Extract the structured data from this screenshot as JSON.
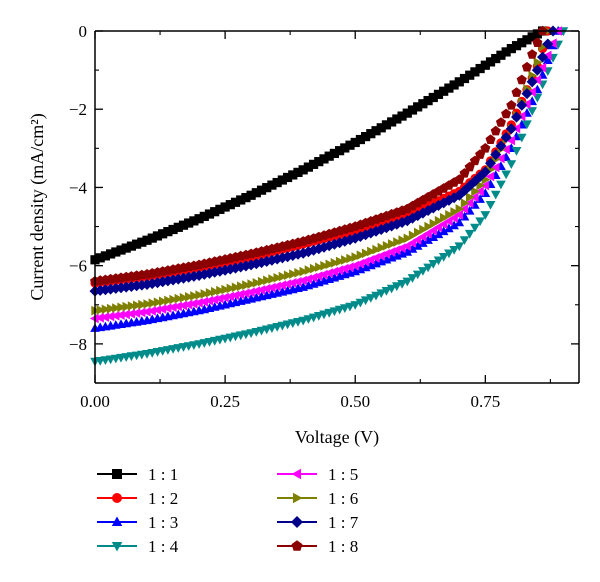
{
  "chart_data": {
    "type": "scatter",
    "xlabel": "Voltage (V)",
    "ylabel": "Current density (mA/cm²)",
    "xlim": [
      0,
      0.93
    ],
    "ylim": [
      -9,
      0
    ],
    "x_ticks": [
      "0.00",
      "0.25",
      "0.50",
      "0.75"
    ],
    "y_ticks": [
      "0",
      "−2",
      "−4",
      "−6",
      "−8"
    ],
    "grid": false,
    "legend_position": "bottom",
    "series": [
      {
        "name": "1 : 1",
        "color": "#000000",
        "marker": "square",
        "points": [
          [
            0.0,
            -5.85
          ],
          [
            0.1,
            -5.35
          ],
          [
            0.2,
            -4.8
          ],
          [
            0.3,
            -4.2
          ],
          [
            0.4,
            -3.55
          ],
          [
            0.5,
            -2.85
          ],
          [
            0.6,
            -2.1
          ],
          [
            0.7,
            -1.3
          ],
          [
            0.8,
            -0.45
          ],
          [
            0.86,
            0.0
          ]
        ]
      },
      {
        "name": "1 : 2",
        "color": "#ff0000",
        "marker": "circle",
        "points": [
          [
            0.0,
            -6.45
          ],
          [
            0.1,
            -6.28
          ],
          [
            0.2,
            -6.05
          ],
          [
            0.3,
            -5.78
          ],
          [
            0.4,
            -5.45
          ],
          [
            0.5,
            -5.1
          ],
          [
            0.6,
            -4.7
          ],
          [
            0.7,
            -4.1
          ],
          [
            0.75,
            -3.55
          ],
          [
            0.8,
            -2.4
          ],
          [
            0.85,
            -0.9
          ],
          [
            0.87,
            0.0
          ]
        ]
      },
      {
        "name": "1 : 3",
        "color": "#0000ff",
        "marker": "triangle-up",
        "points": [
          [
            0.0,
            -7.6
          ],
          [
            0.1,
            -7.4
          ],
          [
            0.2,
            -7.15
          ],
          [
            0.3,
            -6.85
          ],
          [
            0.4,
            -6.55
          ],
          [
            0.5,
            -6.15
          ],
          [
            0.6,
            -5.65
          ],
          [
            0.7,
            -4.9
          ],
          [
            0.75,
            -4.15
          ],
          [
            0.8,
            -3.0
          ],
          [
            0.85,
            -1.5
          ],
          [
            0.89,
            0.0
          ]
        ]
      },
      {
        "name": "1 : 4",
        "color": "#008b8b",
        "marker": "triangle-down",
        "points": [
          [
            0.0,
            -8.45
          ],
          [
            0.1,
            -8.25
          ],
          [
            0.2,
            -8.0
          ],
          [
            0.3,
            -7.72
          ],
          [
            0.4,
            -7.4
          ],
          [
            0.5,
            -7.0
          ],
          [
            0.6,
            -6.4
          ],
          [
            0.7,
            -5.5
          ],
          [
            0.75,
            -4.7
          ],
          [
            0.8,
            -3.4
          ],
          [
            0.85,
            -1.7
          ],
          [
            0.9,
            0.0
          ]
        ]
      },
      {
        "name": "1 : 5",
        "color": "#ff00ff",
        "marker": "triangle-left",
        "points": [
          [
            0.0,
            -7.35
          ],
          [
            0.1,
            -7.18
          ],
          [
            0.2,
            -6.95
          ],
          [
            0.3,
            -6.68
          ],
          [
            0.4,
            -6.38
          ],
          [
            0.5,
            -6.0
          ],
          [
            0.6,
            -5.5
          ],
          [
            0.7,
            -4.7
          ],
          [
            0.75,
            -3.95
          ],
          [
            0.8,
            -2.8
          ],
          [
            0.85,
            -1.25
          ],
          [
            0.89,
            0.0
          ]
        ]
      },
      {
        "name": "1 : 6",
        "color": "#808000",
        "marker": "triangle-right",
        "points": [
          [
            0.0,
            -7.15
          ],
          [
            0.1,
            -6.98
          ],
          [
            0.2,
            -6.75
          ],
          [
            0.3,
            -6.47
          ],
          [
            0.4,
            -6.15
          ],
          [
            0.5,
            -5.78
          ],
          [
            0.6,
            -5.3
          ],
          [
            0.7,
            -4.55
          ],
          [
            0.75,
            -3.8
          ],
          [
            0.8,
            -2.5
          ],
          [
            0.85,
            -0.8
          ],
          [
            0.87,
            0.0
          ]
        ]
      },
      {
        "name": "1 : 7",
        "color": "#00008b",
        "marker": "diamond",
        "points": [
          [
            0.0,
            -6.65
          ],
          [
            0.1,
            -6.48
          ],
          [
            0.2,
            -6.25
          ],
          [
            0.3,
            -5.98
          ],
          [
            0.4,
            -5.68
          ],
          [
            0.5,
            -5.3
          ],
          [
            0.6,
            -4.85
          ],
          [
            0.7,
            -4.2
          ],
          [
            0.75,
            -3.6
          ],
          [
            0.8,
            -2.5
          ],
          [
            0.85,
            -1.0
          ],
          [
            0.88,
            0.0
          ]
        ]
      },
      {
        "name": "1 : 8",
        "color": "#8b0000",
        "marker": "pentagon",
        "points": [
          [
            0.0,
            -6.4
          ],
          [
            0.1,
            -6.22
          ],
          [
            0.2,
            -5.98
          ],
          [
            0.3,
            -5.7
          ],
          [
            0.4,
            -5.38
          ],
          [
            0.5,
            -5.0
          ],
          [
            0.6,
            -4.55
          ],
          [
            0.7,
            -3.8
          ],
          [
            0.75,
            -3.0
          ],
          [
            0.8,
            -1.9
          ],
          [
            0.84,
            -0.6
          ],
          [
            0.86,
            0.0
          ]
        ]
      }
    ]
  }
}
